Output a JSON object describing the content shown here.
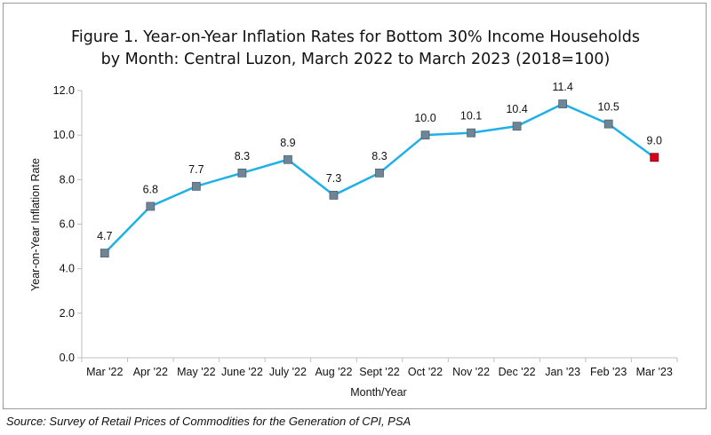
{
  "title_lines": [
    "Figure 1.  Year-on-Year Inflation Rates for Bottom 30% Income Households",
    "by Month: Central Luzon, March 2022 to March 2023 (2018=100)"
  ],
  "source": "Source: Survey of Retail Prices of Commodities for the Generation of CPI, PSA",
  "colors": {
    "line": "#1fb0e8",
    "marker": "#6f8595",
    "last_marker": "#d9001b",
    "axis": "#bfbfbf"
  },
  "chart_data": {
    "type": "line",
    "title": "Figure 1.  Year-on-Year Inflation Rates for Bottom 30% Income Households by Month: Central Luzon, March 2022 to March 2023 (2018=100)",
    "xlabel": "Month/Year",
    "ylabel": "Year-on-Year Inflation Rate",
    "ylim": [
      0,
      12
    ],
    "yticks": [
      "0.0",
      "2.0",
      "4.0",
      "6.0",
      "8.0",
      "10.0",
      "12.0"
    ],
    "grid": false,
    "categories": [
      "Mar '22",
      "Apr '22",
      "May '22",
      "June '22",
      "July '22",
      "Aug '22",
      "Sept '22",
      "Oct '22",
      "Nov '22",
      "Dec '22",
      "Jan '23",
      "Feb '23",
      "Mar '23"
    ],
    "series": [
      {
        "values": [
          4.7,
          6.8,
          7.7,
          8.3,
          8.9,
          7.3,
          8.3,
          10.0,
          10.1,
          10.4,
          11.4,
          10.5,
          9.0
        ],
        "labels": [
          "4.7",
          "6.8",
          "7.7",
          "8.3",
          "8.9",
          "7.3",
          "8.3",
          "10.0",
          "10.1",
          "10.4",
          "11.4",
          "10.5",
          "9.0"
        ]
      }
    ]
  }
}
